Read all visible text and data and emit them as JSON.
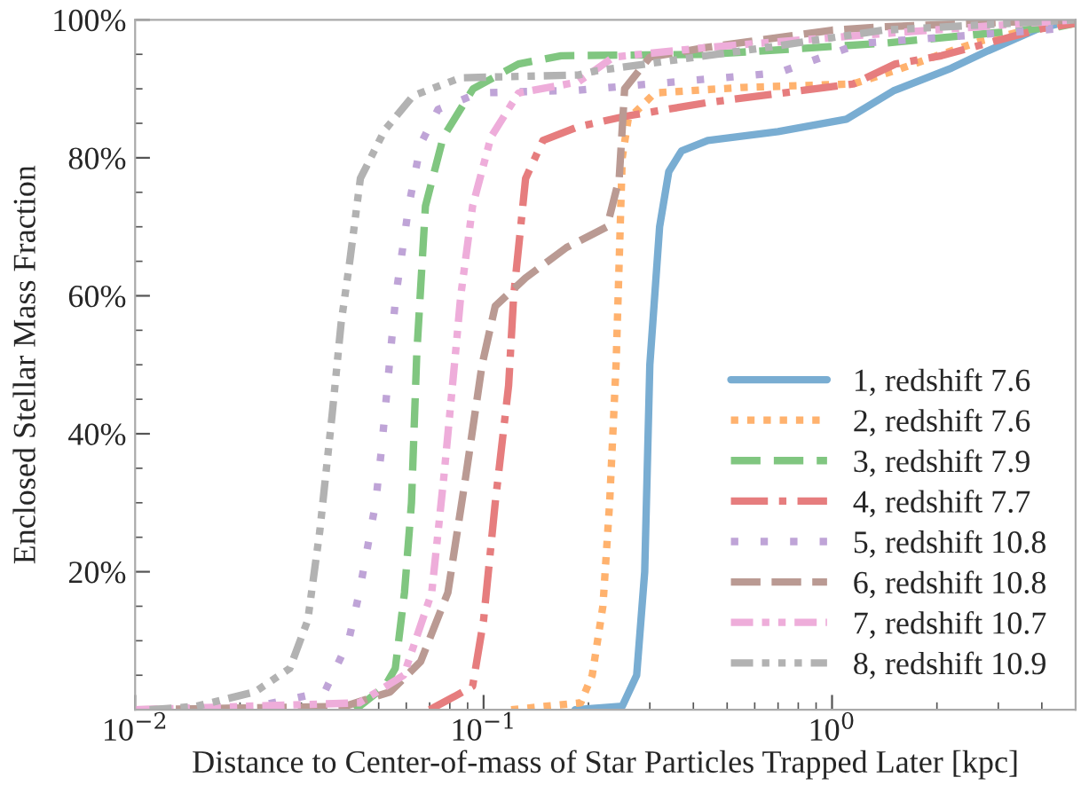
{
  "chart_data": {
    "type": "line",
    "xlabel": "Distance to Center-of-mass of Star Particles Trapped Later [kpc]",
    "ylabel": "Enclosed Stellar Mass Fraction",
    "log": "x",
    "xlim": [
      0.01,
      5
    ],
    "ylim": [
      0,
      100
    ],
    "xticks": [
      {
        "value": 0.01,
        "label": "10$^{−2}$"
      },
      {
        "value": 0.1,
        "label": "10$^{−1}$"
      },
      {
        "value": 1,
        "label": "10$^{0}$"
      }
    ],
    "yticks": [
      {
        "value": 20,
        "label": "20%"
      },
      {
        "value": 40,
        "label": "40%"
      },
      {
        "value": 60,
        "label": "60%"
      },
      {
        "value": 80,
        "label": "80%"
      },
      {
        "value": 100,
        "label": "100%"
      }
    ],
    "grid": false,
    "legend": "bottom right",
    "series": [
      {
        "name": "1, redshift 7.6",
        "color": "#79add2",
        "line_style": "solid",
        "x": [
          0.183,
          0.25,
          0.275,
          0.29,
          0.3,
          0.32,
          0.34,
          0.37,
          0.44,
          0.7,
          1.1,
          1.5,
          2.2,
          2.8,
          3.9,
          5
        ],
        "values": [
          0,
          0.5,
          5,
          20,
          50,
          70,
          78,
          81,
          82.5,
          83.8,
          85.6,
          89.7,
          93,
          95.5,
          98.7,
          100
        ]
      },
      {
        "name": "2, redshift 7.6",
        "color": "#ffb26e",
        "line_style": "dotted",
        "x": [
          0.12,
          0.19,
          0.205,
          0.22,
          0.23,
          0.24,
          0.245,
          0.25,
          0.26,
          0.31,
          0.55,
          1.15,
          1.55,
          2.0,
          2.7,
          4.0,
          5
        ],
        "values": [
          0,
          1,
          5,
          15,
          30,
          50,
          65,
          80,
          85.6,
          89.4,
          90.2,
          90.7,
          92.8,
          94.8,
          97,
          99,
          100
        ]
      },
      {
        "name": "3, redshift 7.9",
        "color": "#80c680",
        "line_style": "dashed",
        "x": [
          0.0428,
          0.0521,
          0.0558,
          0.0593,
          0.0621,
          0.0643,
          0.0681,
          0.0766,
          0.0933,
          0.126,
          0.167,
          0.44,
          1.4,
          4.48,
          5
        ],
        "values": [
          0,
          3.4,
          6,
          17,
          30,
          51.5,
          73,
          83,
          90,
          93.6,
          94.8,
          95,
          96.6,
          99,
          99.5
        ]
      },
      {
        "name": "4, redshift 7.7",
        "color": "#e67d7e",
        "line_style": "dashdot",
        "x": [
          0.07,
          0.083,
          0.093,
          0.1,
          0.108,
          0.118,
          0.122,
          0.132,
          0.148,
          0.187,
          0.254,
          0.438,
          1.15,
          1.52,
          2.06,
          3.98,
          5
        ],
        "values": [
          0,
          2,
          3.4,
          13,
          30,
          47,
          60,
          77,
          82.5,
          84.5,
          86,
          88,
          90.7,
          93.6,
          94.8,
          98.7,
          99.5
        ]
      },
      {
        "name": "5, redshift 10.8",
        "color": "#bfa4d7",
        "line_style": "loosedotted",
        "x": [
          0.02,
          0.035,
          0.041,
          0.044,
          0.049,
          0.051,
          0.054,
          0.056,
          0.061,
          0.066,
          0.074,
          0.097,
          0.187,
          0.7,
          1.21,
          4.48,
          5
        ],
        "values": [
          0,
          2.6,
          10,
          17,
          30,
          38,
          51.5,
          60,
          73,
          82,
          87,
          89.4,
          89.8,
          92.3,
          96.6,
          98.7,
          99.5
        ]
      },
      {
        "name": "6, redshift 10.8",
        "color": "#ba9a93",
        "line_style": "longdashdot",
        "x": [
          0.01,
          0.04,
          0.054,
          0.066,
          0.079,
          0.089,
          0.099,
          0.108,
          0.132,
          0.173,
          0.226,
          0.245,
          0.254,
          0.3,
          0.438,
          1.0,
          1.4,
          5
        ],
        "values": [
          0,
          0.5,
          2.6,
          7,
          17,
          34,
          50,
          58.5,
          62.6,
          67,
          70,
          77,
          90,
          94.6,
          96,
          98.5,
          99,
          100
        ]
      },
      {
        "name": "7, redshift 10.7",
        "color": "#eeadda",
        "line_style": "dashdotdot",
        "x": [
          0.01,
          0.044,
          0.059,
          0.071,
          0.077,
          0.083,
          0.086,
          0.093,
          0.105,
          0.126,
          0.187,
          0.236,
          0.438,
          1.4,
          5
        ],
        "values": [
          0,
          1,
          5,
          17,
          34,
          51.5,
          60,
          73,
          83,
          89.4,
          91,
          94.6,
          96,
          98,
          100
        ]
      },
      {
        "name": "8, redshift 10.9",
        "color": "#b2b2b2",
        "line_style": "dashdotdotdot",
        "x": [
          0.011,
          0.015,
          0.0221,
          0.0278,
          0.0313,
          0.0339,
          0.0368,
          0.039,
          0.0413,
          0.0443,
          0.052,
          0.0628,
          0.086,
          0.187,
          0.21,
          0.65,
          1.4,
          5
        ],
        "values": [
          0,
          0.5,
          2.6,
          6,
          13,
          26,
          43,
          56,
          65,
          77,
          84,
          89,
          91.6,
          92,
          92.6,
          96,
          98.5,
          100
        ]
      }
    ]
  }
}
